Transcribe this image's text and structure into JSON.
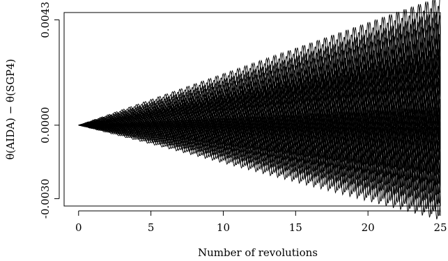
{
  "chart_data": {
    "type": "line",
    "title": "",
    "xlabel": "Number of revolutions",
    "ylabel": "θ(AIDA) − θ(SGP4)",
    "xlim": [
      -1,
      25
    ],
    "ylim": [
      -0.0033,
      0.0046
    ],
    "xticks": [
      "0",
      "5",
      "10",
      "15",
      "20",
      "25"
    ],
    "yticks": [
      "-0.0030",
      "0.0000",
      "0.0043"
    ],
    "grid": false,
    "legend": "none",
    "line_color": "#000000",
    "series_description_count": 70,
    "x_range": [
      0,
      25
    ],
    "endpoints_at_x25": [
      0.004,
      0.0038,
      0.0036,
      0.0035,
      0.0033,
      0.0032,
      0.003,
      0.0029,
      0.0028,
      0.0026,
      0.0025,
      0.0024,
      0.0022,
      0.0021,
      0.002,
      0.0019,
      0.0018,
      0.0017,
      0.0016,
      0.0015,
      0.0014,
      0.0013,
      0.0012,
      0.0011,
      0.001,
      0.0009,
      0.0008,
      0.0007,
      0.0006,
      0.0005,
      0.0004,
      0.0003,
      0.0002,
      0.0001,
      0.0,
      -0.0001,
      -0.0002,
      -0.0003,
      -0.0004,
      -0.0005,
      -0.0006,
      -0.0007,
      -0.0008,
      -0.0009,
      -0.001,
      -0.0011,
      -0.0012,
      -0.0013,
      -0.0014,
      -0.0015,
      -0.0016,
      -0.0017,
      -0.0018,
      -0.0019,
      -0.002,
      -0.0021,
      -0.0022,
      -0.0023,
      -0.0024,
      -0.0026,
      -0.0028
    ]
  }
}
